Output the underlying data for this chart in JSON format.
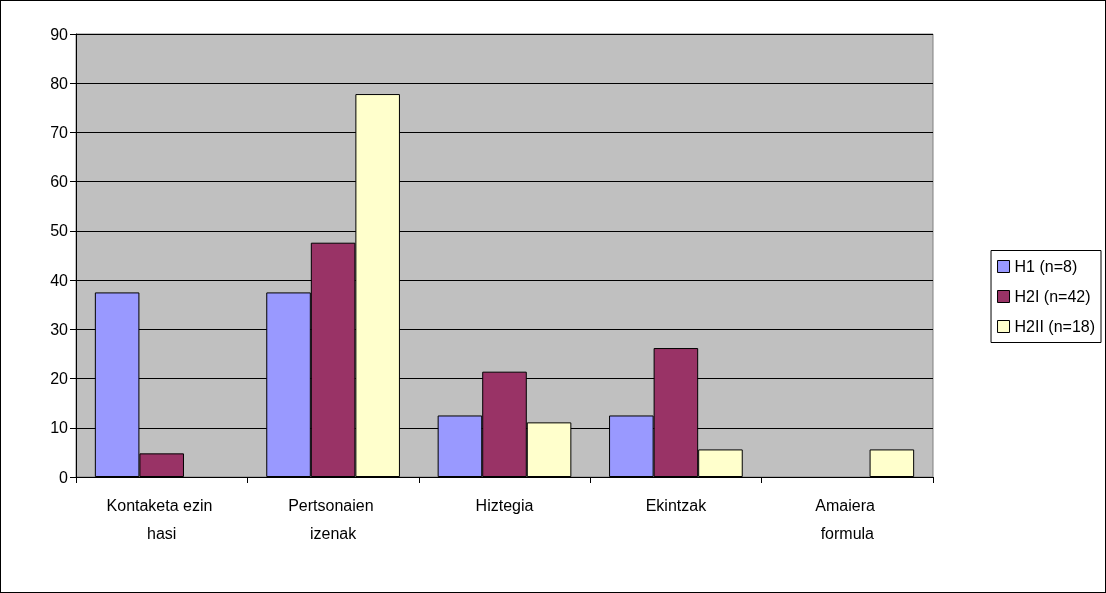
{
  "chart_data": {
    "type": "bar",
    "categories": [
      "Kontaketa ezin hasi",
      "Pertsonaien izenak",
      "Hiztegia",
      "Ekintzak",
      "Amaiera formula"
    ],
    "series": [
      {
        "name": "H1 (n=8)",
        "color": "#9999ff",
        "values": [
          37.5,
          37.5,
          12.5,
          12.5,
          0
        ]
      },
      {
        "name": "H2I (n=42)",
        "color": "#993366",
        "values": [
          4.8,
          47.6,
          21.4,
          26.2,
          0
        ]
      },
      {
        "name": "H2II (n=18)",
        "color": "#ffffcc",
        "values": [
          0,
          77.8,
          11.1,
          5.6,
          5.6
        ]
      }
    ],
    "ylim": [
      0,
      90
    ],
    "yticks": [
      0,
      10,
      20,
      30,
      40,
      50,
      60,
      70,
      80,
      90
    ],
    "grid": "y",
    "legend": "right"
  }
}
